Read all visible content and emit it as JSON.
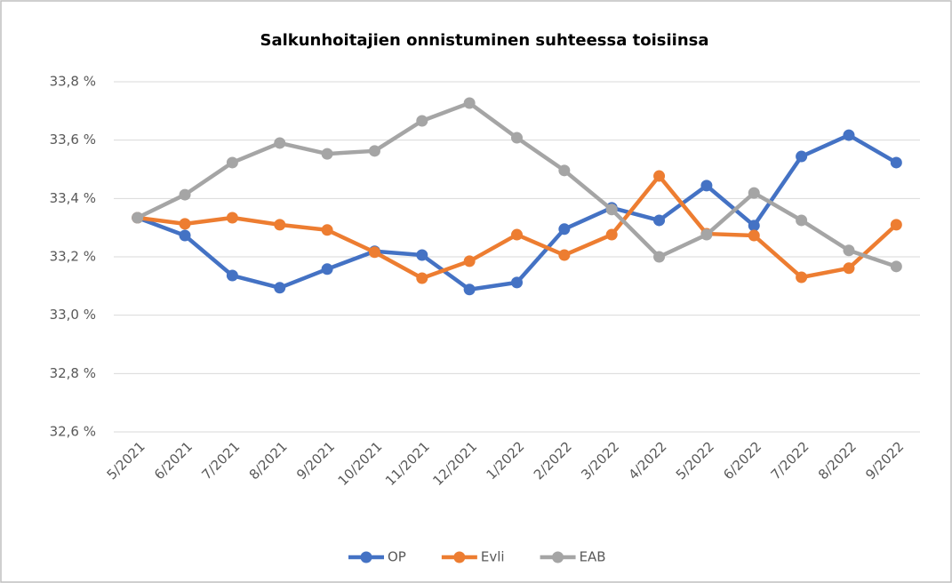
{
  "chart_data": {
    "type": "line",
    "title": "Salkunhoitajien onnistuminen suhteessa toisiinsa",
    "categories": [
      "5/2021",
      "6/2021",
      "7/2021",
      "8/2021",
      "9/2021",
      "10/2021",
      "11/2021",
      "12/2021",
      "1/2022",
      "2/2022",
      "3/2022",
      "4/2022",
      "5/2022",
      "6/2022",
      "7/2022",
      "8/2022",
      "9/2022"
    ],
    "series": [
      {
        "name": "OP",
        "color": "#4472c4",
        "values": [
          33.334,
          33.273,
          33.136,
          33.094,
          33.158,
          33.219,
          33.206,
          33.088,
          33.112,
          33.295,
          33.368,
          33.325,
          33.444,
          33.307,
          33.544,
          33.617,
          33.523
        ]
      },
      {
        "name": "Evli",
        "color": "#ed7d31",
        "values": [
          33.334,
          33.313,
          33.334,
          33.31,
          33.292,
          33.216,
          33.127,
          33.185,
          33.276,
          33.206,
          33.276,
          33.477,
          33.279,
          33.273,
          33.13,
          33.161,
          33.31
        ]
      },
      {
        "name": "EAB",
        "color": "#a5a5a5",
        "values": [
          33.334,
          33.413,
          33.523,
          33.59,
          33.553,
          33.563,
          33.666,
          33.727,
          33.608,
          33.496,
          33.362,
          33.2,
          33.276,
          33.419,
          33.325,
          33.222,
          33.167
        ]
      }
    ],
    "ylim": [
      32.6,
      33.8
    ],
    "yticks": [
      {
        "value": 32.6,
        "label": "32,6 %"
      },
      {
        "value": 32.8,
        "label": "32,8 %"
      },
      {
        "value": 33.0,
        "label": "33,0 %"
      },
      {
        "value": 33.2,
        "label": "33,2 %"
      },
      {
        "value": 33.4,
        "label": "33,4 %"
      },
      {
        "value": 33.6,
        "label": "33,6 %"
      },
      {
        "value": 33.8,
        "label": "33,8 %"
      }
    ],
    "grid": true,
    "legend": "bottom"
  }
}
